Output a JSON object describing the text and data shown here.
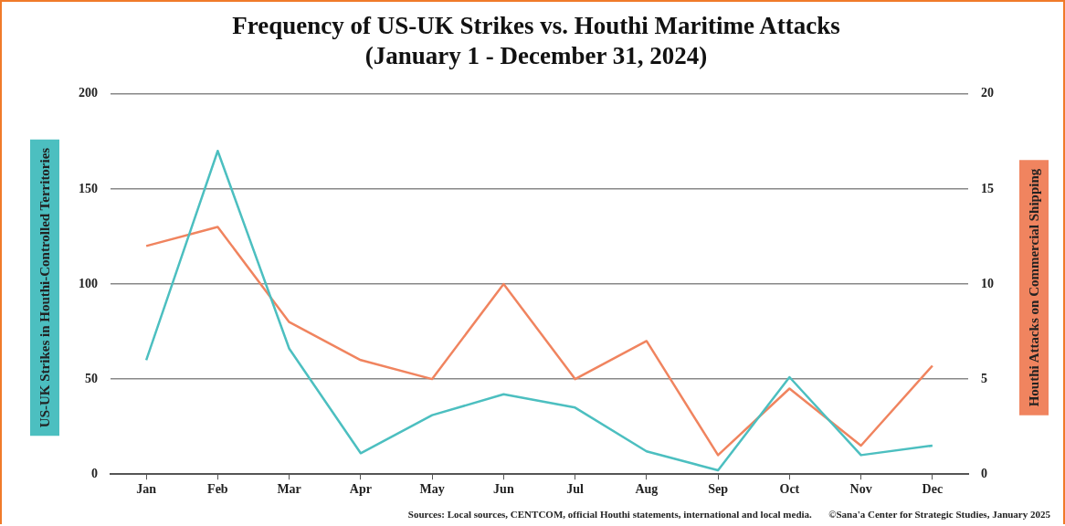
{
  "chart_data": {
    "type": "line",
    "title": "Frequency of US-UK Strikes vs. Houthi Maritime Attacks",
    "subtitle": "(January 1 - December 31, 2024)",
    "ylabel": "US-UK Strikes in Houthi-Controlled Territories",
    "y2label": "Houthi Attacks on Commercial Shipping",
    "categories": [
      "Jan",
      "Feb",
      "Mar",
      "Apr",
      "May",
      "Jun",
      "Jul",
      "Aug",
      "Sep",
      "Oct",
      "Nov",
      "Dec"
    ],
    "series": [
      {
        "color": "#4cbfc0",
        "values": [
          60,
          170,
          66,
          11,
          31,
          42,
          35,
          12,
          2,
          51,
          10,
          15
        ]
      },
      {
        "color": "#f0845f",
        "axis": "y2",
        "values": [
          12,
          13,
          8,
          6,
          5,
          10,
          5,
          7,
          1,
          4.5,
          1.5,
          5.7
        ]
      }
    ],
    "ylim": [
      0,
      200
    ],
    "yticks": [
      0,
      50,
      100,
      150,
      200
    ],
    "y2lim": [
      0,
      20
    ],
    "y2ticks": [
      0,
      5,
      10,
      15,
      20
    ],
    "grid": "y",
    "legend": false,
    "marker": "none",
    "line_style": "solid",
    "annotations": [
      "Sources: Local sources, CENTCOM, official Houthi statements, international and local media.",
      "©Sana'a Center for Strategic Studies, January 2025"
    ]
  }
}
